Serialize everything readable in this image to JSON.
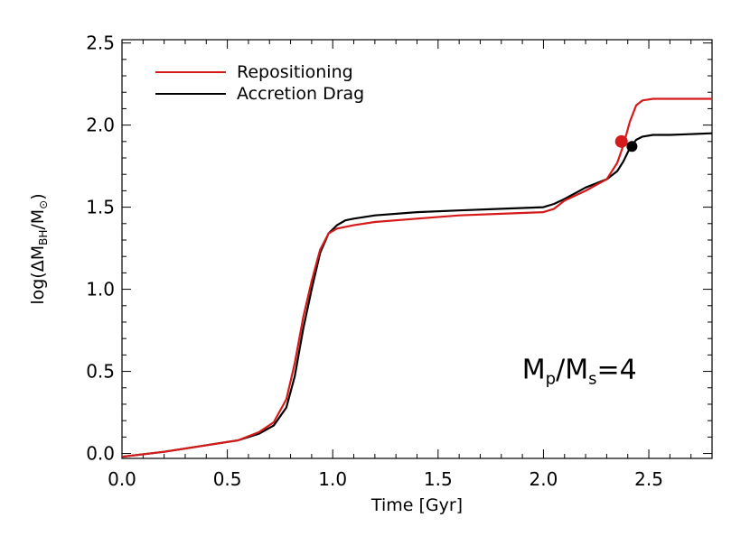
{
  "chart_data": {
    "type": "line",
    "title": "",
    "xlabel": "Time [Gyr]",
    "ylabel": {
      "prefix": "log(ΔM",
      "sub1": "BH",
      "mid": "/M",
      "sub2": "⊙",
      "suffix": ")"
    },
    "xlim": [
      0.0,
      2.8
    ],
    "ylim": [
      -0.03,
      2.52
    ],
    "xticks": [
      0.0,
      0.5,
      1.0,
      1.5,
      2.0,
      2.5
    ],
    "xtick_labels": [
      "0.0",
      "0.5",
      "1.0",
      "1.5",
      "2.0",
      "2.5"
    ],
    "yticks": [
      0.0,
      0.5,
      1.0,
      1.5,
      2.0,
      2.5
    ],
    "ytick_labels": [
      "0.0",
      "0.5",
      "1.0",
      "1.5",
      "2.0",
      "2.5"
    ],
    "grid": false,
    "legend_position": "top-left",
    "series": [
      {
        "name": "Repositioning",
        "color": "#d61a1a",
        "x": [
          0.0,
          0.2,
          0.4,
          0.55,
          0.65,
          0.72,
          0.78,
          0.82,
          0.86,
          0.9,
          0.94,
          0.98,
          1.02,
          1.06,
          1.1,
          1.2,
          1.4,
          1.6,
          1.8,
          2.0,
          2.05,
          2.1,
          2.2,
          2.3,
          2.35,
          2.38,
          2.41,
          2.44,
          2.47,
          2.52,
          2.6,
          2.7,
          2.8
        ],
        "y": [
          -0.02,
          0.01,
          0.05,
          0.08,
          0.13,
          0.19,
          0.33,
          0.55,
          0.83,
          1.05,
          1.24,
          1.34,
          1.37,
          1.38,
          1.39,
          1.41,
          1.43,
          1.45,
          1.46,
          1.47,
          1.49,
          1.54,
          1.6,
          1.67,
          1.77,
          1.88,
          2.02,
          2.12,
          2.15,
          2.16,
          2.16,
          2.16,
          2.16
        ],
        "marker": {
          "x": 2.37,
          "y": 1.9
        }
      },
      {
        "name": "Accretion Drag",
        "color": "#000000",
        "x": [
          0.0,
          0.2,
          0.4,
          0.55,
          0.65,
          0.72,
          0.78,
          0.82,
          0.86,
          0.9,
          0.94,
          0.98,
          1.02,
          1.06,
          1.1,
          1.2,
          1.4,
          1.6,
          1.8,
          2.0,
          2.05,
          2.1,
          2.2,
          2.3,
          2.35,
          2.38,
          2.41,
          2.44,
          2.47,
          2.52,
          2.6,
          2.7,
          2.8
        ],
        "y": [
          -0.02,
          0.01,
          0.05,
          0.08,
          0.12,
          0.17,
          0.28,
          0.47,
          0.76,
          1.0,
          1.22,
          1.34,
          1.39,
          1.42,
          1.43,
          1.45,
          1.47,
          1.48,
          1.49,
          1.5,
          1.52,
          1.55,
          1.62,
          1.67,
          1.72,
          1.78,
          1.86,
          1.91,
          1.93,
          1.94,
          1.94,
          1.945,
          1.95
        ],
        "marker": {
          "x": 2.42,
          "y": 1.87
        }
      }
    ],
    "annotation": {
      "part1": "M",
      "sub1": "p",
      "part2": "/M",
      "sub2": "s",
      "part3": "=4",
      "x": 1.95,
      "y": 0.5
    }
  }
}
